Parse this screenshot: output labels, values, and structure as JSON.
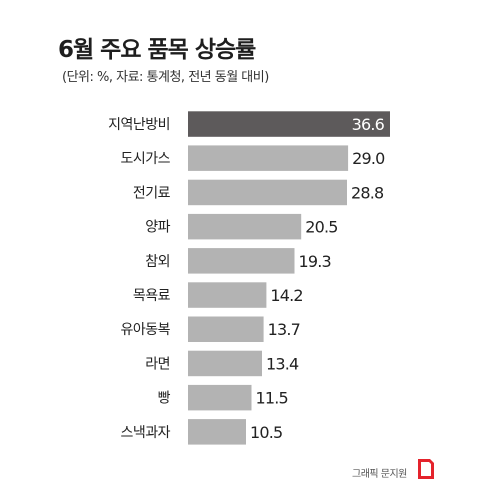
{
  "title": "6월 주요 품목 상승률",
  "subtitle": "(단위: %, 자료: 통계청, 전년 동월 대비)",
  "credit": "그래픽 문지원",
  "colors": {
    "highlight": "#5d5a5b",
    "bar": "#b3b3b3",
    "logo": "#e4232c"
  },
  "chart_data": {
    "type": "bar",
    "orientation": "horizontal",
    "categories": [
      "지역난방비",
      "도시가스",
      "전기료",
      "양파",
      "참외",
      "목욕료",
      "유아동복",
      "라면",
      "빵",
      "스낵과자"
    ],
    "values": [
      36.6,
      29.0,
      28.8,
      20.5,
      19.3,
      14.2,
      13.7,
      13.4,
      11.5,
      10.5
    ],
    "value_labels": [
      "36.6",
      "29.0",
      "28.8",
      "20.5",
      "19.3",
      "14.2",
      "13.7",
      "13.4",
      "11.5",
      "10.5"
    ],
    "highlight_index": 0,
    "unit": "%",
    "grid": false,
    "legend": "none"
  }
}
